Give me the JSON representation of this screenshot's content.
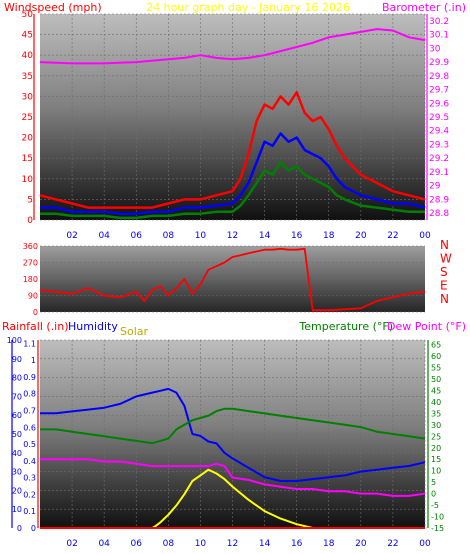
{
  "chart_data": [
    {
      "type": "line",
      "title": "24 hour graph day - January 16 2026",
      "y_left_label": "Windspeed (mph)",
      "y_right_label": "Barometer (.in)",
      "y_left_ticks": [
        0,
        5,
        10,
        15,
        20,
        25,
        30,
        35,
        40,
        45,
        50
      ],
      "y_right_ticks": [
        "28.8",
        "28.9",
        "29",
        "29.1",
        "29.2",
        "29.3",
        "29.4",
        "29.5",
        "29.6",
        "29.7",
        "29.8",
        "29.9",
        "30",
        "30.1",
        "30.2"
      ],
      "x_ticks": [
        "02",
        "04",
        "06",
        "08",
        "10",
        "12",
        "14",
        "16",
        "18",
        "20",
        "22",
        "00"
      ],
      "ylim_left": [
        0,
        50
      ],
      "ylim_right": [
        28.75,
        30.25
      ],
      "xlim": [
        0,
        24
      ],
      "colors": {
        "gust": "#ff0000",
        "average": "#0000ff",
        "low": "#008000",
        "barometer": "#ff00ff",
        "title": "#ffff00",
        "left_label": "#ff0000",
        "right_label": "#ff00ff"
      },
      "series": [
        {
          "key": "barometer",
          "axis": "right",
          "x": [
            0,
            2,
            4,
            6,
            8,
            9,
            10,
            11,
            12,
            13,
            14,
            15,
            16,
            17,
            18,
            19,
            20,
            21,
            22,
            23,
            24
          ],
          "values": [
            29.9,
            29.89,
            29.89,
            29.9,
            29.92,
            29.93,
            29.95,
            29.93,
            29.92,
            29.93,
            29.95,
            29.98,
            30.01,
            30.04,
            30.08,
            30.1,
            30.12,
            30.14,
            30.13,
            30.08,
            30.06
          ]
        },
        {
          "key": "gust",
          "axis": "left",
          "x": [
            0,
            1,
            2,
            3,
            4,
            5,
            6,
            7,
            8,
            9,
            10,
            11,
            12,
            12.5,
            13,
            13.5,
            14,
            14.5,
            15,
            15.5,
            16,
            16.5,
            17,
            17.5,
            18,
            18.5,
            19,
            20,
            21,
            22,
            23,
            24
          ],
          "values": [
            6,
            5,
            4,
            3,
            3,
            3,
            3,
            3,
            4,
            5,
            5,
            6,
            7,
            10,
            16,
            24,
            28,
            27,
            30,
            28,
            31,
            26,
            24,
            25,
            22,
            18,
            15,
            11,
            9,
            7,
            6,
            5
          ]
        },
        {
          "key": "average",
          "axis": "left",
          "x": [
            0,
            1,
            2,
            3,
            4,
            5,
            6,
            7,
            8,
            9,
            10,
            11,
            12,
            12.5,
            13,
            13.5,
            14,
            14.5,
            15,
            15.5,
            16,
            16.5,
            17,
            17.5,
            18,
            18.5,
            19,
            20,
            21,
            22,
            23,
            24
          ],
          "values": [
            3,
            3,
            2,
            2,
            2,
            1.5,
            1.5,
            2,
            2,
            3,
            3,
            3.5,
            4,
            6,
            9,
            14,
            19,
            18,
            21,
            19,
            20,
            17,
            16,
            15,
            13,
            10,
            8,
            6,
            5,
            4,
            4,
            3
          ]
        },
        {
          "key": "low",
          "axis": "left",
          "x": [
            0,
            1,
            2,
            3,
            4,
            5,
            6,
            7,
            8,
            9,
            10,
            11,
            12,
            12.5,
            13,
            13.5,
            14,
            14.5,
            15,
            15.5,
            16,
            16.5,
            17,
            17.5,
            18,
            18.5,
            19,
            20,
            21,
            22,
            23,
            24
          ],
          "values": [
            1.5,
            1.5,
            1,
            1,
            1,
            0.5,
            0.5,
            1,
            1,
            1.5,
            1.5,
            2,
            2,
            3.5,
            6,
            9,
            12,
            11,
            14,
            12,
            13,
            11,
            10,
            9,
            8,
            6,
            5,
            3.5,
            3,
            2.5,
            2,
            2
          ]
        }
      ]
    },
    {
      "type": "line",
      "y_ticks": [
        0,
        90,
        180,
        270,
        360
      ],
      "compass": [
        "N",
        "W",
        "S",
        "E",
        "N"
      ],
      "ylim": [
        0,
        360
      ],
      "xlim": [
        0,
        24
      ],
      "colors": {
        "direction": "#ff0000",
        "compass": "#ff0000"
      },
      "series": [
        {
          "key": "wind_direction",
          "x": [
            0,
            1,
            2,
            3,
            4,
            5,
            6,
            6.5,
            7,
            7.5,
            8,
            8.5,
            9,
            9.5,
            10,
            10.5,
            11,
            11.5,
            12,
            12.5,
            13,
            13.5,
            14,
            14.5,
            15,
            15.5,
            16,
            16.5,
            17,
            18,
            19,
            20,
            21,
            22,
            23,
            24
          ],
          "values": [
            120,
            110,
            100,
            130,
            90,
            80,
            110,
            60,
            120,
            140,
            90,
            130,
            180,
            100,
            150,
            230,
            250,
            270,
            300,
            310,
            320,
            330,
            340,
            340,
            345,
            340,
            340,
            345,
            10,
            10,
            15,
            20,
            60,
            80,
            100,
            110
          ]
        }
      ]
    },
    {
      "type": "line",
      "y_left_label": "Rainfall (.in)",
      "humidity_label": "Humidity",
      "solar_label": "Solar",
      "y_right_label": "Temperature (°F)",
      "dewpoint_label": "Dew Point (°F)",
      "humidity_ticks": [
        0,
        10,
        20,
        30,
        40,
        50,
        60,
        70,
        80,
        90,
        100
      ],
      "rain_ticks": [
        "0",
        "0.1",
        "0.2",
        "0.3",
        "0.4",
        "0.5",
        "0.6",
        "0.7",
        "0.8",
        "0.9",
        "1",
        "1.1"
      ],
      "temp_ticks": [
        -15,
        -10,
        -5,
        0,
        5,
        10,
        15,
        20,
        25,
        30,
        35,
        40,
        45,
        50,
        55,
        60,
        65
      ],
      "x_ticks": [
        "02",
        "04",
        "06",
        "08",
        "10",
        "12",
        "14",
        "16",
        "18",
        "20",
        "22",
        "00"
      ],
      "ylim_humidity": [
        0,
        100
      ],
      "ylim_temperature": [
        -15,
        67
      ],
      "xlim": [
        0,
        24
      ],
      "colors": {
        "rainfall": "#ff0000",
        "humidity": "#0000ff",
        "solar": "#ffff00",
        "temperature": "#008000",
        "dewpoint": "#ff00ff"
      },
      "series": [
        {
          "key": "humidity",
          "axis": "humidity",
          "x": [
            0,
            1,
            2,
            3,
            4,
            5,
            6,
            7,
            7.5,
            8,
            8.5,
            9,
            9.5,
            10,
            10.5,
            11,
            11.5,
            12,
            13,
            14,
            15,
            16,
            17,
            18,
            19,
            20,
            21,
            22,
            23,
            24
          ],
          "values": [
            61,
            61,
            62,
            63,
            64,
            66,
            70,
            72,
            73,
            74,
            72,
            65,
            50,
            49,
            46,
            45,
            40,
            37,
            32,
            27,
            25,
            25,
            26,
            27,
            28,
            30,
            31,
            32,
            33,
            35
          ]
        },
        {
          "key": "temperature",
          "axis": "temperature",
          "x": [
            0,
            1,
            2,
            3,
            4,
            5,
            6,
            7,
            7.5,
            8,
            8.5,
            9,
            9.5,
            10,
            10.5,
            11,
            11.5,
            12,
            13,
            14,
            15,
            16,
            17,
            18,
            19,
            20,
            21,
            22,
            23,
            24
          ],
          "values": [
            28,
            28,
            27,
            26,
            25,
            24,
            23,
            22,
            23,
            24,
            28,
            30,
            32,
            33,
            34,
            36,
            37,
            37,
            36,
            35,
            34,
            33,
            32,
            31,
            30,
            29,
            27,
            26,
            25,
            24
          ]
        },
        {
          "key": "dewpoint",
          "axis": "temperature",
          "x": [
            0,
            1,
            2,
            3,
            4,
            5,
            6,
            7,
            8,
            9,
            10,
            10.5,
            11,
            11.5,
            12,
            13,
            14,
            15,
            16,
            17,
            18,
            19,
            20,
            21,
            22,
            23,
            24
          ],
          "values": [
            15,
            15,
            15,
            15,
            14,
            14,
            13,
            12,
            12,
            12,
            12,
            12,
            13,
            12,
            7,
            6,
            4,
            3,
            2,
            2,
            1,
            1,
            0,
            0,
            -1,
            -1,
            0
          ]
        },
        {
          "key": "solar",
          "axis": "humidity",
          "x": [
            0,
            7,
            7.2,
            7.5,
            8,
            8.5,
            9,
            9.5,
            10,
            10.5,
            11,
            11.5,
            12,
            13,
            14,
            15,
            16,
            17,
            17.2,
            24
          ],
          "values": [
            0,
            0,
            1,
            3,
            7,
            12,
            18,
            25,
            28,
            31,
            29,
            26,
            22,
            15,
            9,
            5,
            2,
            0,
            0,
            0
          ]
        },
        {
          "key": "rainfall",
          "axis": "rain",
          "x": [
            0,
            24
          ],
          "values": [
            0,
            0
          ]
        }
      ]
    }
  ]
}
